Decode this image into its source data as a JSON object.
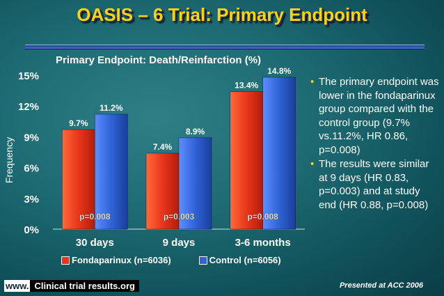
{
  "slide": {
    "title": "OASIS – 6 Trial: Primary Endpoint",
    "footer_www": "www.",
    "footer_site": "Clinical trial results.org",
    "footer_presented": "Presented at ACC 2006"
  },
  "bullets": [
    "The primary endpoint was lower in the fondaparinux group compared with the control group (9.7% vs.11.2%, HR 0.86, p=0.008)",
    "The results were similar at 9 days (HR 0.83, p=0.003) and at study end (HR 0.88, p=0.008)"
  ],
  "colors": {
    "fondaparinux": "#e8361c",
    "control": "#2f63d6",
    "title": "#ffd400"
  },
  "chart_data": {
    "type": "bar",
    "title": "Primary Endpoint: Death/Reinfarction (%)",
    "ylabel": "Frequency",
    "xlabel": "",
    "categories": [
      "30 days",
      "9 days",
      "3-6 months"
    ],
    "series": [
      {
        "name": "Fondaparinux (n=6036)",
        "values": [
          9.7,
          7.4,
          13.4
        ],
        "labels": [
          "9.7%",
          "7.4%",
          "13.4%"
        ]
      },
      {
        "name": "Control (n=6056)",
        "values": [
          11.2,
          8.9,
          14.8
        ],
        "labels": [
          "11.2%",
          "8.9%",
          "14.8%"
        ]
      }
    ],
    "p_values": [
      "p=0.008",
      "p=0.003",
      "p=0.008"
    ],
    "yticks": [
      "0%",
      "3%",
      "6%",
      "9%",
      "12%",
      "15%"
    ],
    "ytick_values": [
      0,
      3,
      6,
      9,
      12,
      15
    ],
    "ylim": [
      0,
      15
    ],
    "grid": false,
    "legend_position": "bottom"
  }
}
